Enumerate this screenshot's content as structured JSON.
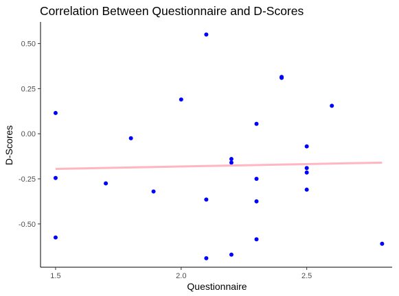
{
  "chart_data": {
    "type": "scatter",
    "title": "Correlation Between Questionnaire and D-Scores",
    "xlabel": "Questionnaire",
    "ylabel": "D-Scores",
    "xlim": [
      1.44,
      2.84
    ],
    "ylim": [
      -0.74,
      0.62
    ],
    "x_ticks": [
      1.5,
      2.0,
      2.5
    ],
    "x_tick_labels": [
      "1.5",
      "2.0",
      "2.5"
    ],
    "y_ticks": [
      0.5,
      0.25,
      0.0,
      -0.25,
      -0.5
    ],
    "y_tick_labels": [
      "0.50",
      "0.25",
      "0.00",
      "-0.25",
      "-0.50"
    ],
    "grid": false,
    "legend": "none",
    "colors": {
      "points": "#0000ff",
      "trend_line": "#ffb6c1",
      "axis": "#000000",
      "tick_text": "#4d4d4d"
    },
    "points": [
      {
        "x": 1.5,
        "y": 0.115
      },
      {
        "x": 1.5,
        "y": -0.245
      },
      {
        "x": 1.5,
        "y": -0.575
      },
      {
        "x": 1.7,
        "y": -0.275
      },
      {
        "x": 1.8,
        "y": -0.025
      },
      {
        "x": 1.89,
        "y": -0.32
      },
      {
        "x": 2.0,
        "y": 0.19
      },
      {
        "x": 2.1,
        "y": 0.55
      },
      {
        "x": 2.1,
        "y": -0.365
      },
      {
        "x": 2.1,
        "y": -0.69
      },
      {
        "x": 2.2,
        "y": -0.14
      },
      {
        "x": 2.2,
        "y": -0.16
      },
      {
        "x": 2.2,
        "y": -0.67
      },
      {
        "x": 2.3,
        "y": 0.055
      },
      {
        "x": 2.3,
        "y": -0.25
      },
      {
        "x": 2.3,
        "y": -0.375
      },
      {
        "x": 2.3,
        "y": -0.585
      },
      {
        "x": 2.4,
        "y": 0.315
      },
      {
        "x": 2.4,
        "y": 0.31
      },
      {
        "x": 2.5,
        "y": -0.07
      },
      {
        "x": 2.5,
        "y": -0.19
      },
      {
        "x": 2.5,
        "y": -0.215
      },
      {
        "x": 2.5,
        "y": -0.31
      },
      {
        "x": 2.6,
        "y": 0.155
      },
      {
        "x": 2.8,
        "y": -0.61
      }
    ],
    "trend_line": {
      "x": [
        1.5,
        2.8
      ],
      "y": [
        -0.195,
        -0.16
      ]
    }
  }
}
